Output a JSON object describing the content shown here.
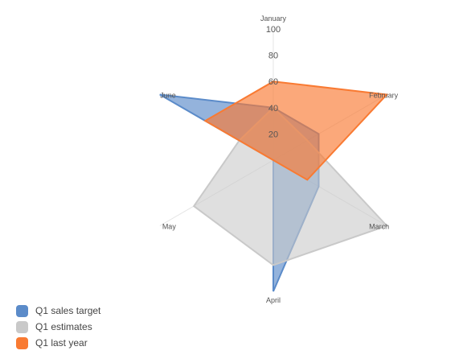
{
  "chart_data": {
    "type": "radar",
    "title": "",
    "categories": [
      "January",
      "February",
      "March",
      "April",
      "May",
      "June"
    ],
    "scale": {
      "min": 0,
      "max": 100,
      "step": 20,
      "tick_labels": [
        "20",
        "40",
        "60",
        "80",
        "100"
      ]
    },
    "series": [
      {
        "name": "Q1 sales target",
        "values": [
          40,
          40,
          40,
          100,
          0,
          100
        ],
        "color": "#5B8BC9"
      },
      {
        "name": "Q1 estimates",
        "values": [
          40,
          30,
          100,
          80,
          70,
          30
        ],
        "color": "#C9C9C9"
      },
      {
        "name": "Q1 last year",
        "values": [
          60,
          100,
          30,
          0,
          0,
          60
        ],
        "color": "#F97A32"
      }
    ],
    "legend_position": "bottom-left"
  }
}
